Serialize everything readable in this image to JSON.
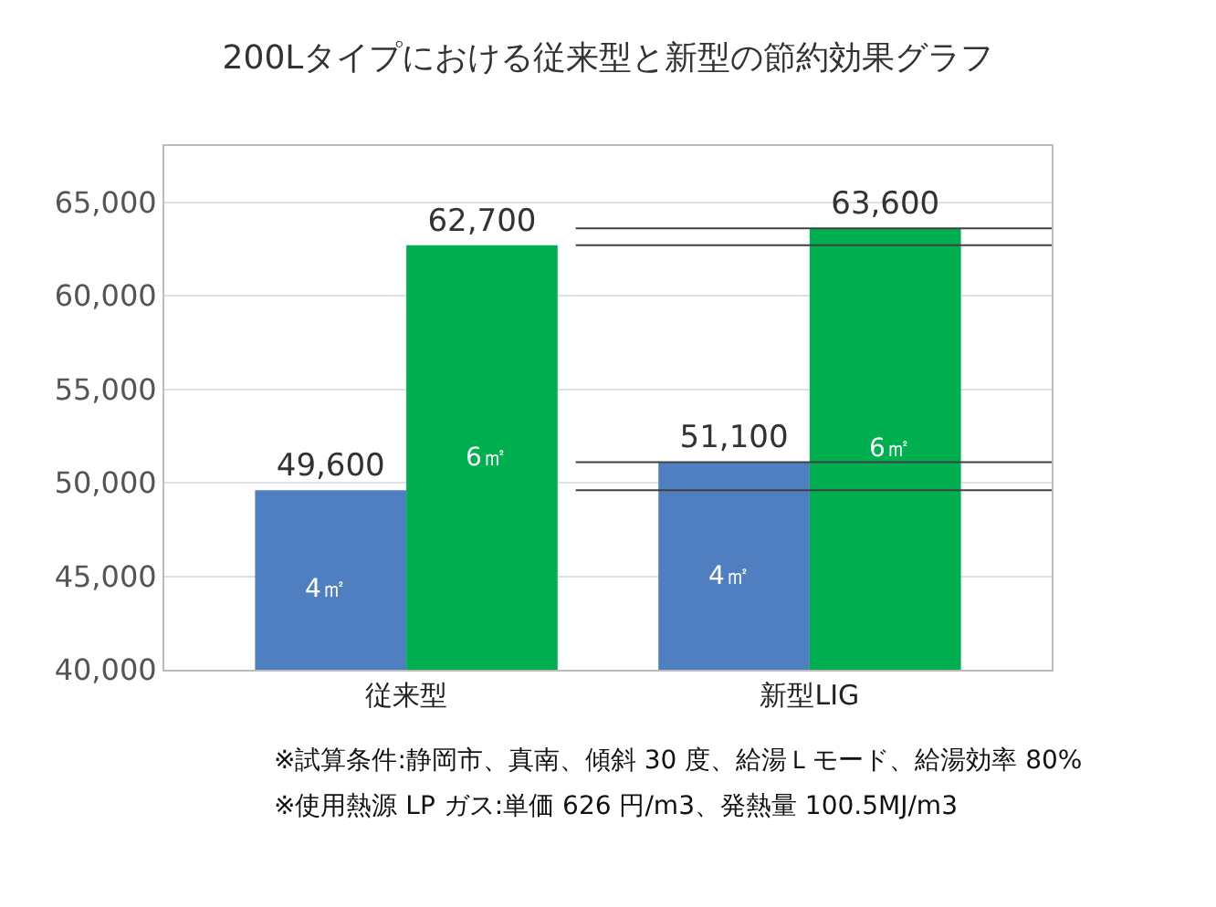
{
  "chart_data": {
    "type": "bar",
    "title": "200Lタイプにおける従来型と新型の節約効果グラフ",
    "categories": [
      "従来型",
      "新型LIG"
    ],
    "series": [
      {
        "name": "4㎡",
        "color": "#4f7fc0",
        "values": [
          49600,
          51100
        ],
        "value_labels": [
          "49,600",
          "51,100"
        ]
      },
      {
        "name": "6㎡",
        "color": "#00b050",
        "values": [
          62700,
          63600
        ],
        "value_labels": [
          "62,700",
          "63,600"
        ]
      }
    ],
    "ylim": [
      40000,
      68000
    ],
    "yticks": [
      {
        "value": 40000,
        "label": "40,000"
      },
      {
        "value": 45000,
        "label": "45,000"
      },
      {
        "value": 50000,
        "label": "50,000"
      },
      {
        "value": 55000,
        "label": "55,000"
      },
      {
        "value": 60000,
        "label": "60,000"
      },
      {
        "value": 65000,
        "label": "65,000"
      }
    ],
    "grid": "y",
    "legend": false,
    "ref_lines": [
      {
        "axis": "y",
        "value": 62700,
        "color": "#404040"
      },
      {
        "axis": "y",
        "value": 63600,
        "color": "#404040"
      },
      {
        "axis": "y",
        "value": 49600,
        "color": "#404040"
      },
      {
        "axis": "y",
        "value": 51100,
        "color": "#404040"
      }
    ],
    "annotations": [
      "※試算条件:静岡市、真南、傾斜 30 度、給湯Ｌモード、給湯効率 80%",
      "※使用熱源 LP ガス:単価 626 円/m3、発熱量 100.5MJ/m3"
    ]
  }
}
